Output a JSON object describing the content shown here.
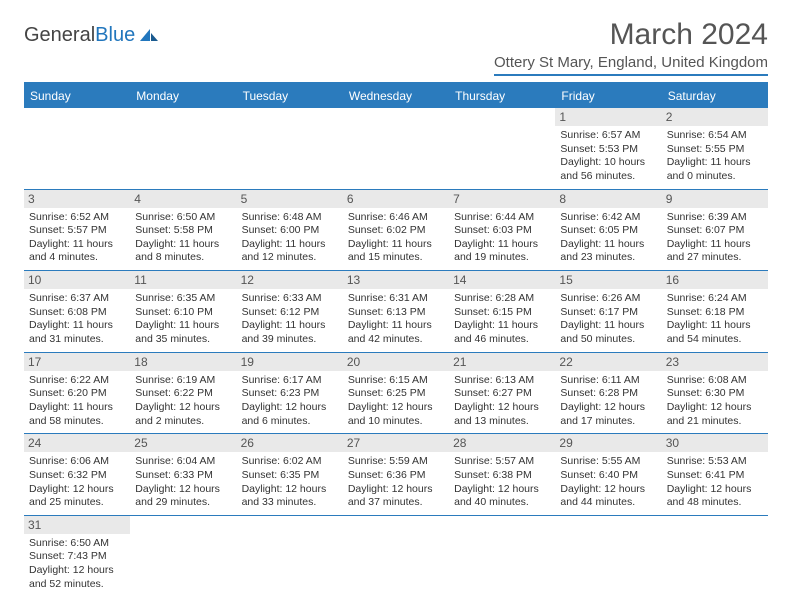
{
  "logo": {
    "text1": "General",
    "text2": "Blue"
  },
  "title": "March 2024",
  "location": "Ottery St Mary, England, United Kingdom",
  "calendar": {
    "type": "table",
    "header_bg": "#2b7bbd",
    "header_fg": "#ffffff",
    "border_color": "#2b7bbd",
    "daynum_bg": "#e9e9e9",
    "font_family": "Arial",
    "header_fontsize": 12,
    "daynum_fontsize": 12,
    "detail_fontsize": 10.5,
    "columns": [
      "Sunday",
      "Monday",
      "Tuesday",
      "Wednesday",
      "Thursday",
      "Friday",
      "Saturday"
    ],
    "days": {
      "1": {
        "sunrise": "6:57 AM",
        "sunset": "5:53 PM",
        "daylight": "10 hours and 56 minutes."
      },
      "2": {
        "sunrise": "6:54 AM",
        "sunset": "5:55 PM",
        "daylight": "11 hours and 0 minutes."
      },
      "3": {
        "sunrise": "6:52 AM",
        "sunset": "5:57 PM",
        "daylight": "11 hours and 4 minutes."
      },
      "4": {
        "sunrise": "6:50 AM",
        "sunset": "5:58 PM",
        "daylight": "11 hours and 8 minutes."
      },
      "5": {
        "sunrise": "6:48 AM",
        "sunset": "6:00 PM",
        "daylight": "11 hours and 12 minutes."
      },
      "6": {
        "sunrise": "6:46 AM",
        "sunset": "6:02 PM",
        "daylight": "11 hours and 15 minutes."
      },
      "7": {
        "sunrise": "6:44 AM",
        "sunset": "6:03 PM",
        "daylight": "11 hours and 19 minutes."
      },
      "8": {
        "sunrise": "6:42 AM",
        "sunset": "6:05 PM",
        "daylight": "11 hours and 23 minutes."
      },
      "9": {
        "sunrise": "6:39 AM",
        "sunset": "6:07 PM",
        "daylight": "11 hours and 27 minutes."
      },
      "10": {
        "sunrise": "6:37 AM",
        "sunset": "6:08 PM",
        "daylight": "11 hours and 31 minutes."
      },
      "11": {
        "sunrise": "6:35 AM",
        "sunset": "6:10 PM",
        "daylight": "11 hours and 35 minutes."
      },
      "12": {
        "sunrise": "6:33 AM",
        "sunset": "6:12 PM",
        "daylight": "11 hours and 39 minutes."
      },
      "13": {
        "sunrise": "6:31 AM",
        "sunset": "6:13 PM",
        "daylight": "11 hours and 42 minutes."
      },
      "14": {
        "sunrise": "6:28 AM",
        "sunset": "6:15 PM",
        "daylight": "11 hours and 46 minutes."
      },
      "15": {
        "sunrise": "6:26 AM",
        "sunset": "6:17 PM",
        "daylight": "11 hours and 50 minutes."
      },
      "16": {
        "sunrise": "6:24 AM",
        "sunset": "6:18 PM",
        "daylight": "11 hours and 54 minutes."
      },
      "17": {
        "sunrise": "6:22 AM",
        "sunset": "6:20 PM",
        "daylight": "11 hours and 58 minutes."
      },
      "18": {
        "sunrise": "6:19 AM",
        "sunset": "6:22 PM",
        "daylight": "12 hours and 2 minutes."
      },
      "19": {
        "sunrise": "6:17 AM",
        "sunset": "6:23 PM",
        "daylight": "12 hours and 6 minutes."
      },
      "20": {
        "sunrise": "6:15 AM",
        "sunset": "6:25 PM",
        "daylight": "12 hours and 10 minutes."
      },
      "21": {
        "sunrise": "6:13 AM",
        "sunset": "6:27 PM",
        "daylight": "12 hours and 13 minutes."
      },
      "22": {
        "sunrise": "6:11 AM",
        "sunset": "6:28 PM",
        "daylight": "12 hours and 17 minutes."
      },
      "23": {
        "sunrise": "6:08 AM",
        "sunset": "6:30 PM",
        "daylight": "12 hours and 21 minutes."
      },
      "24": {
        "sunrise": "6:06 AM",
        "sunset": "6:32 PM",
        "daylight": "12 hours and 25 minutes."
      },
      "25": {
        "sunrise": "6:04 AM",
        "sunset": "6:33 PM",
        "daylight": "12 hours and 29 minutes."
      },
      "26": {
        "sunrise": "6:02 AM",
        "sunset": "6:35 PM",
        "daylight": "12 hours and 33 minutes."
      },
      "27": {
        "sunrise": "5:59 AM",
        "sunset": "6:36 PM",
        "daylight": "12 hours and 37 minutes."
      },
      "28": {
        "sunrise": "5:57 AM",
        "sunset": "6:38 PM",
        "daylight": "12 hours and 40 minutes."
      },
      "29": {
        "sunrise": "5:55 AM",
        "sunset": "6:40 PM",
        "daylight": "12 hours and 44 minutes."
      },
      "30": {
        "sunrise": "5:53 AM",
        "sunset": "6:41 PM",
        "daylight": "12 hours and 48 minutes."
      },
      "31": {
        "sunrise": "6:50 AM",
        "sunset": "7:43 PM",
        "daylight": "12 hours and 52 minutes."
      }
    },
    "grid": [
      [
        null,
        null,
        null,
        null,
        null,
        "1",
        "2"
      ],
      [
        "3",
        "4",
        "5",
        "6",
        "7",
        "8",
        "9"
      ],
      [
        "10",
        "11",
        "12",
        "13",
        "14",
        "15",
        "16"
      ],
      [
        "17",
        "18",
        "19",
        "20",
        "21",
        "22",
        "23"
      ],
      [
        "24",
        "25",
        "26",
        "27",
        "28",
        "29",
        "30"
      ],
      [
        "31",
        null,
        null,
        null,
        null,
        null,
        null
      ]
    ],
    "labels": {
      "sunrise": "Sunrise: ",
      "sunset": "Sunset: ",
      "daylight": "Daylight: "
    }
  }
}
